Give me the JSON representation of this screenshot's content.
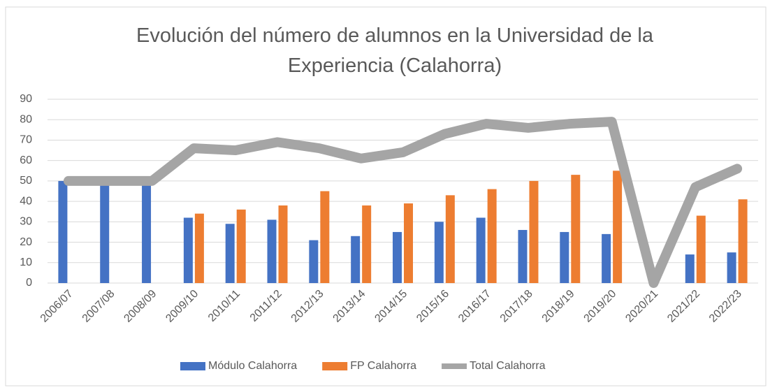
{
  "chart_data": {
    "type": "bar-line",
    "title": "Evolución del número de alumnos en la Universidad de la Experiencia (Calahorra)",
    "categories": [
      "2006/07",
      "2007/08",
      "2008/09",
      "2009/10",
      "2010/11",
      "2011/12",
      "2012/13",
      "2013/14",
      "2014/15",
      "2015/16",
      "2016/17",
      "2017/18",
      "2018/19",
      "2019/20",
      "2020/21",
      "2021/22",
      "2022/23"
    ],
    "series": [
      {
        "name": "Módulo Calahorra",
        "color": "#4472c4",
        "kind": "bar",
        "values": [
          50,
          50,
          50,
          32,
          29,
          31,
          21,
          23,
          25,
          30,
          32,
          26,
          25,
          24,
          null,
          14,
          15
        ]
      },
      {
        "name": "FP Calahorra",
        "color": "#ed7d31",
        "kind": "bar",
        "values": [
          null,
          null,
          null,
          34,
          36,
          38,
          45,
          38,
          39,
          43,
          46,
          50,
          53,
          55,
          null,
          33,
          41
        ]
      },
      {
        "name": "Total Calahorra",
        "color": "#a5a5a5",
        "kind": "line",
        "values": [
          50,
          50,
          50,
          66,
          65,
          69,
          66,
          61,
          64,
          73,
          78,
          76,
          78,
          79,
          0,
          47,
          56
        ]
      }
    ],
    "ylim": [
      0,
      90
    ],
    "yticks": [
      0,
      10,
      20,
      30,
      40,
      50,
      60,
      70,
      80,
      90
    ],
    "grid": true,
    "legend": "bottom"
  }
}
